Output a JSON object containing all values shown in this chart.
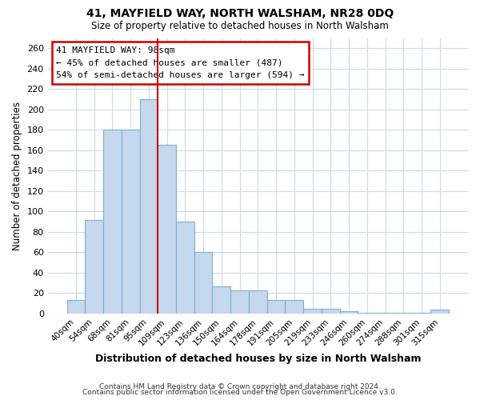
{
  "title": "41, MAYFIELD WAY, NORTH WALSHAM, NR28 0DQ",
  "subtitle": "Size of property relative to detached houses in North Walsham",
  "xlabel": "Distribution of detached houses by size in North Walsham",
  "ylabel": "Number of detached properties",
  "bar_labels": [
    "40sqm",
    "54sqm",
    "68sqm",
    "81sqm",
    "95sqm",
    "109sqm",
    "123sqm",
    "136sqm",
    "150sqm",
    "164sqm",
    "178sqm",
    "191sqm",
    "205sqm",
    "219sqm",
    "233sqm",
    "246sqm",
    "260sqm",
    "274sqm",
    "288sqm",
    "301sqm",
    "315sqm"
  ],
  "bar_values": [
    13,
    92,
    180,
    180,
    210,
    165,
    90,
    60,
    27,
    23,
    23,
    13,
    13,
    5,
    5,
    2,
    1,
    1,
    1,
    1,
    4
  ],
  "bar_color": "#c5d8ee",
  "bar_edge_color": "#7bafd4",
  "vline_x": 4.5,
  "vline_color": "#cc0000",
  "annotation_title": "41 MAYFIELD WAY: 98sqm",
  "annotation_line1": "← 45% of detached houses are smaller (487)",
  "annotation_line2": "54% of semi-detached houses are larger (594) →",
  "annotation_box_color": "#ffffff",
  "annotation_box_edge": "#cc0000",
  "ylim": [
    0,
    270
  ],
  "yticks": [
    0,
    20,
    40,
    60,
    80,
    100,
    120,
    140,
    160,
    180,
    200,
    220,
    240,
    260
  ],
  "footer1": "Contains HM Land Registry data © Crown copyright and database right 2024.",
  "footer2": "Contains public sector information licensed under the Open Government Licence v3.0.",
  "bg_color": "#ffffff",
  "plot_bg_color": "#ffffff",
  "grid_color": "#d0d8e8"
}
